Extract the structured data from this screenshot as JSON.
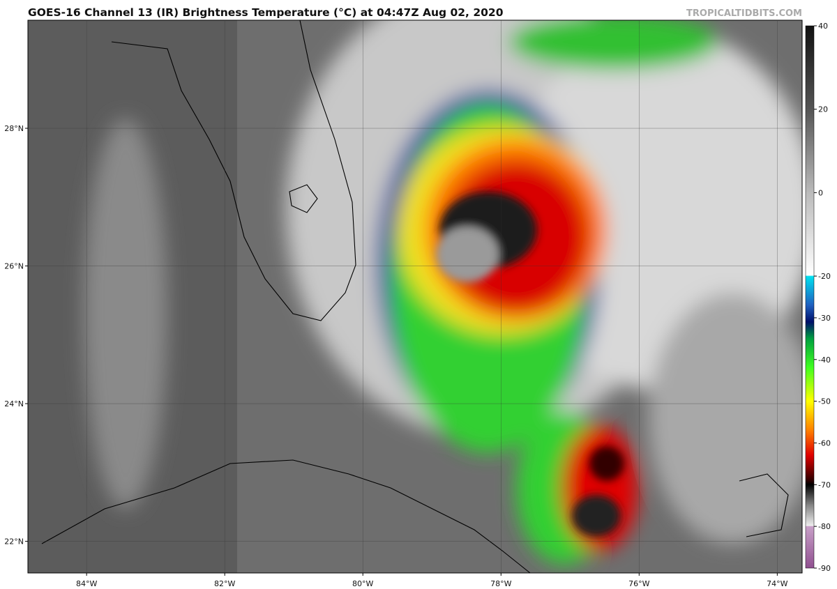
{
  "header": {
    "title": "GOES-16 Channel 13 (IR) Brightness Temperature (°C) at 04:47Z Aug 02, 2020",
    "credit": "TROPICALTIDBITS.COM"
  },
  "map": {
    "xlim": [
      -84.85,
      -73.64
    ],
    "ylim": [
      21.54,
      29.57
    ],
    "lon_ticks": [
      {
        "value": -84,
        "label": "84°W"
      },
      {
        "value": -82,
        "label": "82°W"
      },
      {
        "value": -80,
        "label": "80°W"
      },
      {
        "value": -78,
        "label": "78°W"
      },
      {
        "value": -76,
        "label": "76°W"
      },
      {
        "value": -74,
        "label": "74°W"
      }
    ],
    "lat_ticks": [
      {
        "value": 28,
        "label": "28°N"
      },
      {
        "value": 26,
        "label": "26°N"
      },
      {
        "value": 24,
        "label": "24°N"
      },
      {
        "value": 22,
        "label": "22°N"
      }
    ]
  },
  "colorbar": {
    "lim": [
      -90,
      40
    ],
    "ticks": [
      40,
      20,
      0,
      -20,
      -30,
      -40,
      -50,
      -60,
      -70,
      -80,
      -90
    ]
  }
}
